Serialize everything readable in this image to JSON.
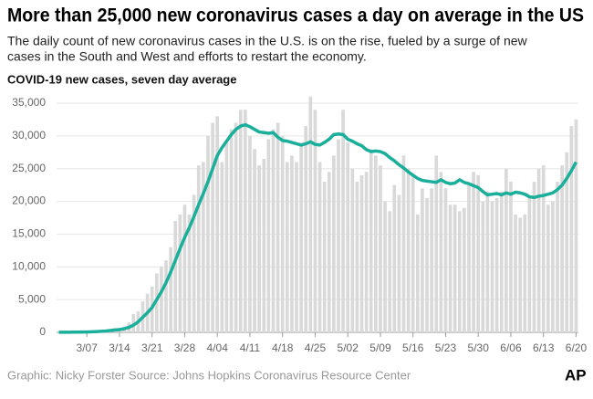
{
  "chart_data": {
    "type": "bar",
    "title": "More than 25,000 new coronavirus cases a day on average in the US",
    "subtitle": [
      "The daily count of new coronavirus cases in the U.S. is on the rise, fueled by a surge of new",
      "cases in the South and West and efforts to restart the economy."
    ],
    "axis_title": "COVID-19 new cases, seven day average",
    "source": "Graphic: Nicky Forster  Source: Johns Hopkins Coronavirus Resource Center",
    "logo": "AP",
    "categories": [
      null,
      null,
      null,
      null,
      null,
      null,
      "3/07",
      null,
      null,
      null,
      null,
      null,
      null,
      "3/14",
      null,
      null,
      null,
      null,
      null,
      null,
      "3/21",
      null,
      null,
      null,
      null,
      null,
      null,
      "3/28",
      null,
      null,
      null,
      null,
      null,
      null,
      "4/04",
      null,
      null,
      null,
      null,
      null,
      null,
      "4/11",
      null,
      null,
      null,
      null,
      null,
      null,
      "4/18",
      null,
      null,
      null,
      null,
      null,
      null,
      "4/25",
      null,
      null,
      null,
      null,
      null,
      null,
      "5/02",
      null,
      null,
      null,
      null,
      null,
      null,
      "5/09",
      null,
      null,
      null,
      null,
      null,
      null,
      "5/16",
      null,
      null,
      null,
      null,
      null,
      null,
      "5/23",
      null,
      null,
      null,
      null,
      null,
      null,
      "5/30",
      null,
      null,
      null,
      null,
      null,
      null,
      "6/06",
      null,
      null,
      null,
      null,
      null,
      null,
      "6/13",
      null,
      null,
      null,
      null,
      null,
      null,
      "6/20"
    ],
    "series": [
      {
        "type": "bar",
        "color": "#d9d9d9",
        "values": [
          8,
          20,
          24,
          30,
          70,
          60,
          100,
          120,
          180,
          270,
          420,
          440,
          660,
          720,
          900,
          1500,
          2800,
          3200,
          4700,
          5900,
          7000,
          9000,
          10000,
          11000,
          13000,
          17000,
          18000,
          19500,
          18000,
          21000,
          25500,
          26000,
          30000,
          32000,
          33000,
          26000,
          29000,
          31000,
          32000,
          34000,
          34000,
          30000,
          28000,
          25500,
          26500,
          29500,
          31000,
          32000,
          30000,
          26000,
          27000,
          26000,
          29000,
          31500,
          36000,
          34000,
          26000,
          23000,
          24500,
          27000,
          29500,
          34000,
          29000,
          25000,
          23000,
          24000,
          24500,
          28000,
          27000,
          25500,
          20000,
          18500,
          22500,
          21000,
          27000,
          25000,
          24000,
          18000,
          22000,
          20500,
          22000,
          27000,
          24500,
          22000,
          19500,
          19500,
          18500,
          19000,
          22500,
          24500,
          24000,
          20000,
          21500,
          20000,
          20500,
          21500,
          25000,
          23000,
          18000,
          17500,
          18000,
          20500,
          23000,
          25000,
          25500,
          19500,
          20000,
          23000,
          25500,
          27500,
          31500,
          32500
        ]
      },
      {
        "type": "line",
        "color": "#1aaf9b",
        "values": [
          10,
          15,
          20,
          30,
          40,
          50,
          60,
          80,
          110,
          150,
          200,
          280,
          350,
          420,
          550,
          750,
          1100,
          1600,
          2300,
          3000,
          3800,
          5000,
          6200,
          7600,
          9200,
          11000,
          12800,
          14500,
          16000,
          17700,
          19500,
          21200,
          23000,
          25000,
          27000,
          28200,
          29200,
          30200,
          31000,
          31500,
          31700,
          31400,
          31000,
          30600,
          30500,
          30400,
          30500,
          29800,
          29300,
          29200,
          29000,
          28800,
          28600,
          28800,
          29100,
          28700,
          28600,
          29000,
          29500,
          30200,
          30300,
          30200,
          29500,
          29200,
          28800,
          28500,
          27900,
          27600,
          27700,
          27600,
          27300,
          26700,
          26200,
          25600,
          25100,
          24500,
          24000,
          23500,
          23200,
          23100,
          23000,
          22900,
          23300,
          22900,
          22700,
          22800,
          23300,
          22900,
          22700,
          22400,
          22100,
          21500,
          21000,
          21100,
          21200,
          21000,
          21300,
          21100,
          21400,
          21300,
          21100,
          20700,
          20600,
          20800,
          20900,
          21100,
          21300,
          21800,
          22500,
          23500,
          24700,
          26000
        ]
      }
    ],
    "ylim": [
      0,
      35000
    ],
    "yticks": [
      0,
      {
        "value": 5000,
        "label": "5,000"
      },
      {
        "value": 10000,
        "label": "10,000"
      },
      {
        "value": 15000,
        "label": "15,000"
      },
      {
        "value": 20000,
        "label": "20,000"
      },
      {
        "value": 25000,
        "label": "25,000"
      },
      {
        "value": 30000,
        "label": "30,000"
      },
      {
        "value": 35000,
        "label": "35,000"
      }
    ],
    "grid": true
  }
}
